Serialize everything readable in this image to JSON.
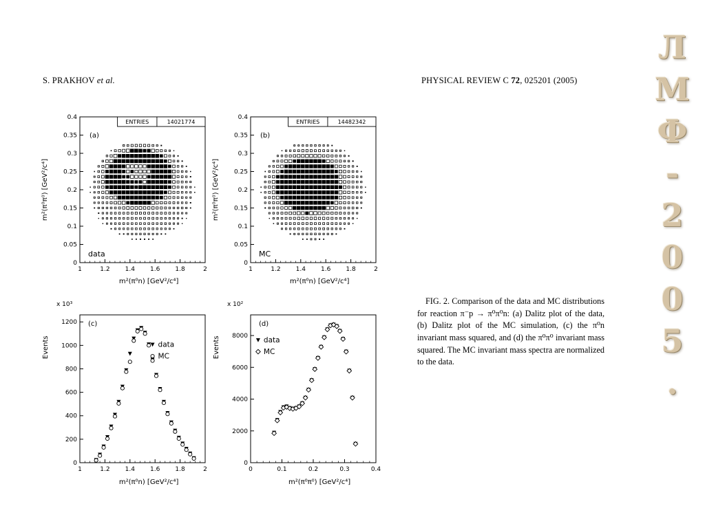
{
  "header": {
    "left_name": "S. PRAKHOV ",
    "left_etal": "et al.",
    "right_pre": "PHYSICAL REVIEW C ",
    "right_vol": "72",
    "right_post": ", 025201 (2005)"
  },
  "caption": {
    "text": "FIG. 2.  Comparison of the data and MC distributions for reaction π⁻p → π⁰π⁰n: (a) Dalitz plot of the data, (b) Dalitz plot of the MC simulation, (c) the π⁰n invariant mass squared, and (d) the π⁰π⁰ invariant mass squared. The MC invariant mass spectra are normalized to the data."
  },
  "watermark": {
    "letters": [
      "Л",
      "М",
      "Ф",
      "-",
      "2",
      "0",
      "0",
      "5",
      "."
    ],
    "color": "#d5c3a5"
  },
  "chart_data": [
    {
      "id": "a",
      "type": "heatmap",
      "subtype": "dalitz-box-density",
      "panel_label": "(a)",
      "corner_label": "data",
      "entries_label": "ENTRIES",
      "entries": "14021774",
      "xlabel": "m²(π⁰n)  [GeV²/c⁴]",
      "ylabel": "m²(π⁰π⁰)  [GeV²/c⁴]",
      "xlim": [
        1,
        2
      ],
      "ylim": [
        0,
        0.4
      ],
      "xticks": [
        "1",
        "1.2",
        "1.4",
        "1.6",
        "1.8",
        "2"
      ],
      "yticks": [
        "0",
        "0.05",
        "0.1",
        "0.15",
        "0.2",
        "0.25",
        "0.3",
        "0.35",
        "0.4"
      ],
      "grid": [
        30,
        28
      ],
      "density_model": {
        "center": [
          1.5,
          0.197
        ],
        "rx": 0.42,
        "ry": 0.138,
        "ring_center": [
          1.46,
          0.24
        ],
        "ring_rx": 0.2,
        "ring_ry": 0.058,
        "ring_width": 0.45,
        "base": 0.38,
        "ring_amp": 0.85,
        "inner_amp": 0.3
      }
    },
    {
      "id": "b",
      "type": "heatmap",
      "subtype": "dalitz-box-density",
      "panel_label": "(b)",
      "corner_label": "MC",
      "entries_label": "ENTRIES",
      "entries": "14482342",
      "xlabel": "m²(π⁰n)  [GeV²/c⁴]",
      "ylabel": "m²(π⁰π⁰)  [GeV²/c⁴]",
      "xlim": [
        1,
        2
      ],
      "ylim": [
        0,
        0.4
      ],
      "xticks": [
        "1",
        "1.2",
        "1.4",
        "1.6",
        "1.8",
        "2"
      ],
      "yticks": [
        "0",
        "0.05",
        "0.1",
        "0.15",
        "0.2",
        "0.25",
        "0.3",
        "0.35",
        "0.4"
      ],
      "grid": [
        30,
        28
      ],
      "density_model": {
        "center": [
          1.5,
          0.197
        ],
        "rx": 0.42,
        "ry": 0.138,
        "ring_center": [
          1.455,
          0.215
        ],
        "ring_rx": 0.17,
        "ring_ry": 0.05,
        "ring_width": 0.65,
        "base": 0.42,
        "ring_amp": 0.75,
        "inner_amp": 0.55
      }
    },
    {
      "id": "c",
      "type": "scatter",
      "panel_label": "(c)",
      "xlabel": "m²(π⁰n)  [GeV²/c⁴]",
      "ylabel": "Events",
      "y_multiplier": "x 10³",
      "xlim": [
        1,
        2
      ],
      "ylim": [
        0,
        1260
      ],
      "xticks": [
        "1",
        "1.2",
        "1.4",
        "1.6",
        "1.8",
        "2"
      ],
      "yticks": [
        "0",
        "200",
        "400",
        "600",
        "800",
        "1000",
        "1200"
      ],
      "x": [
        1.13,
        1.16,
        1.19,
        1.22,
        1.25,
        1.28,
        1.31,
        1.34,
        1.37,
        1.4,
        1.43,
        1.46,
        1.49,
        1.52,
        1.55,
        1.58,
        1.61,
        1.64,
        1.67,
        1.7,
        1.73,
        1.76,
        1.79,
        1.82,
        1.85,
        1.88,
        1.91
      ],
      "series": [
        {
          "name": "data",
          "marker": "triangle-filled",
          "values": [
            25,
            70,
            140,
            220,
            310,
            410,
            520,
            650,
            790,
            930,
            1060,
            1130,
            1150,
            1110,
            1010,
            880,
            750,
            630,
            520,
            425,
            345,
            275,
            215,
            165,
            120,
            80,
            40
          ]
        },
        {
          "name": "MC",
          "marker": "circle-open",
          "values": [
            20,
            60,
            130,
            205,
            295,
            395,
            505,
            635,
            775,
            860,
            1040,
            1120,
            1140,
            1100,
            1000,
            870,
            740,
            620,
            510,
            415,
            335,
            265,
            205,
            155,
            110,
            72,
            35
          ]
        }
      ],
      "legend": {
        "fx": 0.58,
        "fy": 0.2
      }
    },
    {
      "id": "d",
      "type": "scatter",
      "panel_label": "(d)",
      "xlabel": "m²(π⁰π⁰)  [GeV²/c⁴]",
      "ylabel": "Events",
      "y_multiplier": "x 10²",
      "xlim": [
        0,
        0.4
      ],
      "ylim": [
        0,
        9300
      ],
      "xticks": [
        "0",
        "0.1",
        "0.2",
        "0.3",
        "0.4"
      ],
      "yticks": [
        "0",
        "2000",
        "4000",
        "6000",
        "8000"
      ],
      "x": [
        0.075,
        0.085,
        0.095,
        0.105,
        0.115,
        0.125,
        0.135,
        0.145,
        0.155,
        0.165,
        0.175,
        0.185,
        0.195,
        0.205,
        0.215,
        0.225,
        0.235,
        0.245,
        0.255,
        0.265,
        0.275,
        0.285,
        0.295,
        0.305,
        0.315,
        0.325,
        0.335
      ],
      "series": [
        {
          "name": "data",
          "marker": "triangle-filled",
          "values": [
            1900,
            2700,
            3200,
            3500,
            3550,
            3450,
            3400,
            3450,
            3550,
            3750,
            4100,
            4600,
            5200,
            5900,
            6600,
            7300,
            7900,
            8400,
            8650,
            8700,
            8600,
            8300,
            7800,
            7000,
            5800,
            4100,
            1200
          ]
        },
        {
          "name": "MC",
          "marker": "diamond-open",
          "values": [
            1850,
            2650,
            3150,
            3450,
            3500,
            3420,
            3380,
            3430,
            3530,
            3730,
            4080,
            4580,
            5180,
            5880,
            6580,
            7280,
            7880,
            8380,
            8630,
            8680,
            8580,
            8280,
            7780,
            6980,
            5780,
            4080,
            1180
          ]
        }
      ],
      "legend": {
        "fx": 0.06,
        "fy": 0.17
      }
    }
  ]
}
